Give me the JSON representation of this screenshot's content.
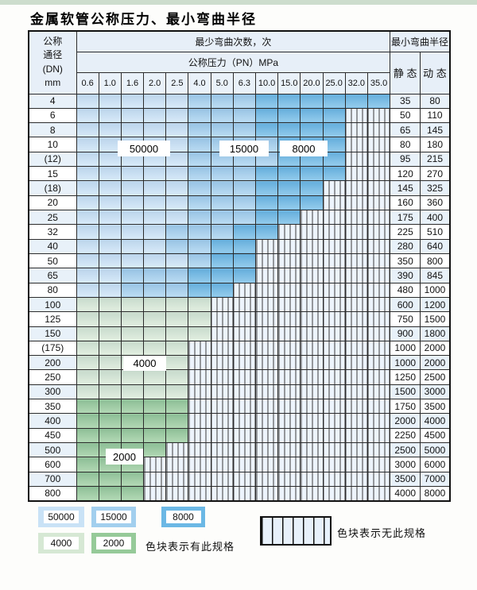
{
  "page": {
    "title": "金属软管公称压力、最小弯曲半径"
  },
  "colors": {
    "50000": "#c9e2f6",
    "15000": "#a2cfee",
    "8000": "#6bb8e5",
    "4000": "#d6e8d4",
    "2000": "#96ca99",
    "stripe_bg": "#edf4fc"
  },
  "table": {
    "header": {
      "dn_lines": "公称\n通径\n(DN)\nmm",
      "cycles": "最少弯曲次数，次",
      "pressure": "公称压力（PN）MPa",
      "radius": "最小弯曲半径",
      "static": "静 态",
      "dynamic": "动 态",
      "pressures": [
        "0.6",
        "1.0",
        "1.6",
        "2.0",
        "2.5",
        "4.0",
        "5.0",
        "6.3",
        "10.0",
        "15.0",
        "20.0",
        "25.0",
        "32.0",
        "35.0"
      ]
    },
    "cell_legend_note": "cells codes: l=50000, m=15000, d=8000, g=4000, G=2000, s=no-spec-striped",
    "rows": [
      {
        "dn": "4",
        "cells": "lllllmmmdddddd",
        "static": "35",
        "dynamic": "80"
      },
      {
        "dn": "6",
        "cells": "lllllmmmddddss",
        "static": "50",
        "dynamic": "110"
      },
      {
        "dn": "8",
        "cells": "lllllmmmddddss",
        "static": "65",
        "dynamic": "145"
      },
      {
        "dn": "10",
        "cells": "lllllmmmmdddss",
        "static": "80",
        "dynamic": "180"
      },
      {
        "dn": "(12)",
        "cells": "lllllmmmmdddss",
        "static": "95",
        "dynamic": "215"
      },
      {
        "dn": "15",
        "cells": "lllllmmmddddss",
        "static": "120",
        "dynamic": "270"
      },
      {
        "dn": "(18)",
        "cells": "lllllmmmdddsss",
        "static": "145",
        "dynamic": "325"
      },
      {
        "dn": "20",
        "cells": "lllllmmmdddsss",
        "static": "160",
        "dynamic": "360"
      },
      {
        "dn": "25",
        "cells": "lllllmmmddssss",
        "static": "175",
        "dynamic": "400"
      },
      {
        "dn": "32",
        "cells": "llllmmmddsssss",
        "static": "225",
        "dynamic": "510"
      },
      {
        "dn": "40",
        "cells": "llllmmddssssss",
        "static": "280",
        "dynamic": "640"
      },
      {
        "dn": "50",
        "cells": "lllllmddssssss",
        "static": "350",
        "dynamic": "800"
      },
      {
        "dn": "65",
        "cells": "llmmmdddssssss",
        "static": "390",
        "dynamic": "845"
      },
      {
        "dn": "80",
        "cells": "llmmmddsssssss",
        "static": "480",
        "dynamic": "1000"
      },
      {
        "dn": "100",
        "cells": "ggggggssssssss",
        "static": "600",
        "dynamic": "1200"
      },
      {
        "dn": "125",
        "cells": "ggggggssssssss",
        "static": "750",
        "dynamic": "1500"
      },
      {
        "dn": "150",
        "cells": "ggggggssssssss",
        "static": "900",
        "dynamic": "1800"
      },
      {
        "dn": "(175)",
        "cells": "gggggsssssssss",
        "static": "1000",
        "dynamic": "2000"
      },
      {
        "dn": "200",
        "cells": "gggggsssssssss",
        "static": "1000",
        "dynamic": "2000"
      },
      {
        "dn": "250",
        "cells": "gggggsssssssss",
        "static": "1250",
        "dynamic": "2500"
      },
      {
        "dn": "300",
        "cells": "gggggsssssssss",
        "static": "1500",
        "dynamic": "3000"
      },
      {
        "dn": "350",
        "cells": "GGGGGsssssssss",
        "static": "1750",
        "dynamic": "3500"
      },
      {
        "dn": "400",
        "cells": "GGGGGsssssssss",
        "static": "2000",
        "dynamic": "4000"
      },
      {
        "dn": "450",
        "cells": "GGGGGsssssssss",
        "static": "2250",
        "dynamic": "4500"
      },
      {
        "dn": "500",
        "cells": "GGGGssssssssss",
        "static": "2500",
        "dynamic": "5000"
      },
      {
        "dn": "600",
        "cells": "GGGsssssssssss",
        "static": "3000",
        "dynamic": "6000"
      },
      {
        "dn": "700",
        "cells": "GGGsssssssssss",
        "static": "3500",
        "dynamic": "7000"
      },
      {
        "dn": "800",
        "cells": "GGGsssssssssss",
        "static": "4000",
        "dynamic": "8000"
      }
    ],
    "overlay_labels": {
      "b50000": "50000",
      "b15000": "15000",
      "b8000": "8000",
      "b4000": "4000",
      "b2000": "2000"
    }
  },
  "legend": {
    "chips": {
      "c50000": "50000",
      "c15000": "15000",
      "c8000": "8000",
      "c4000": "4000",
      "c2000": "2000"
    },
    "has_spec_text": "色块表示有此规格",
    "no_spec_text": "色块表示无此规格"
  }
}
